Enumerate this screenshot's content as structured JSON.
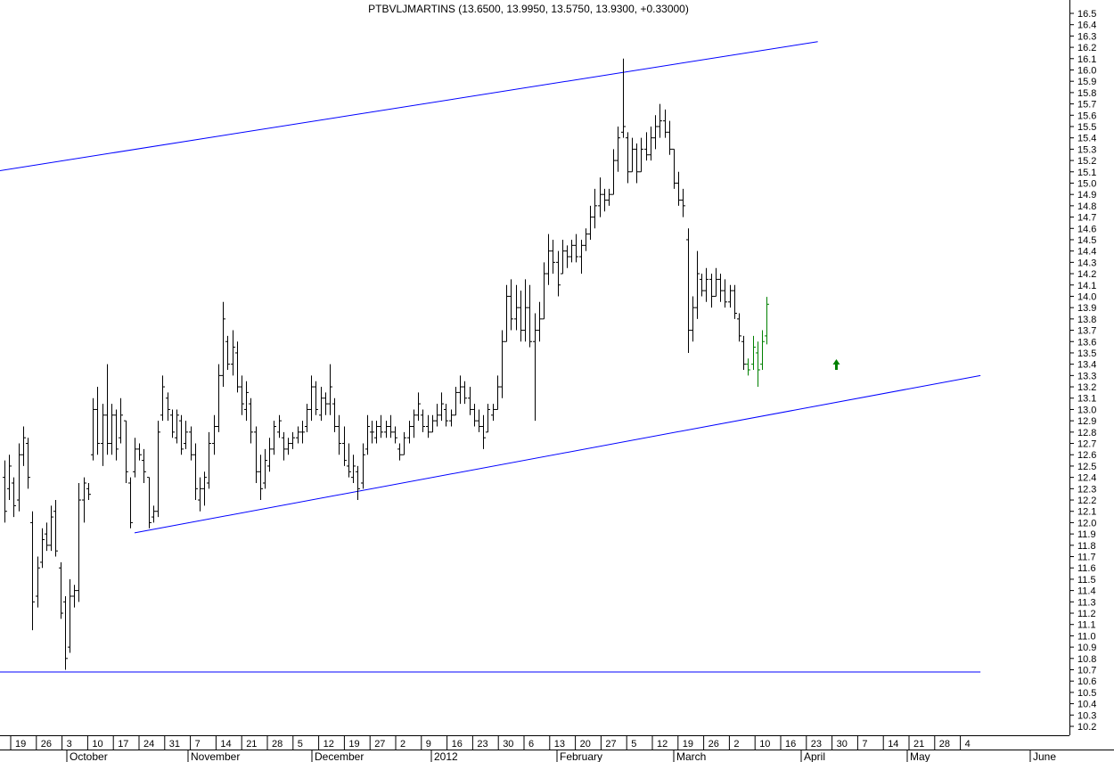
{
  "chart_data": {
    "type": "ohlc-bar",
    "title": "PTBVLJMARTINS (13.6500, 13.9950, 13.5750, 13.9300, +0.33000)",
    "ylim": [
      10.1,
      16.55
    ],
    "y_ticks": [
      10.2,
      10.3,
      10.4,
      10.5,
      10.6,
      10.7,
      10.8,
      10.9,
      11.0,
      11.1,
      11.2,
      11.3,
      11.4,
      11.5,
      11.6,
      11.7,
      11.8,
      11.9,
      12.0,
      12.1,
      12.2,
      12.3,
      12.4,
      12.5,
      12.6,
      12.7,
      12.8,
      12.9,
      13.0,
      13.1,
      13.2,
      13.3,
      13.4,
      13.5,
      13.6,
      13.7,
      13.8,
      13.9,
      14.0,
      14.1,
      14.2,
      14.3,
      14.4,
      14.5,
      14.6,
      14.7,
      14.8,
      14.9,
      15.0,
      15.1,
      15.2,
      15.3,
      15.4,
      15.5,
      15.6,
      15.7,
      15.8,
      15.9,
      16.0,
      16.1,
      16.2,
      16.3,
      16.4,
      16.5
    ],
    "x_day_labels": [
      "19",
      "26",
      "3",
      "10",
      "17",
      "24",
      "31",
      "7",
      "14",
      "21",
      "28",
      "5",
      "12",
      "19",
      "27",
      "2",
      "9",
      "16",
      "23",
      "30",
      "6",
      "13",
      "20",
      "27",
      "5",
      "12",
      "19",
      "26",
      "2",
      "10",
      "16",
      "23",
      "30",
      "7",
      "14",
      "21",
      "28",
      "4"
    ],
    "month_labels": [
      "October",
      "November",
      "December",
      "2012",
      "February",
      "March",
      "April",
      "May",
      "June"
    ],
    "bars": [
      {
        "h": 12.55,
        "l": 12.0,
        "o": 12.4,
        "c": 12.1
      },
      {
        "h": 12.6,
        "l": 12.2,
        "o": 12.3,
        "c": 12.5
      },
      {
        "h": 12.4,
        "l": 12.05,
        "o": 12.35,
        "c": 12.15
      },
      {
        "h": 12.7,
        "l": 12.1,
        "o": 12.2,
        "c": 12.6
      },
      {
        "h": 12.85,
        "l": 12.5,
        "o": 12.6,
        "c": 12.75
      },
      {
        "h": 12.75,
        "l": 12.3,
        "o": 12.7,
        "c": 12.4
      },
      {
        "h": 12.1,
        "l": 11.05,
        "o": 12.0,
        "c": 11.3
      },
      {
        "h": 11.7,
        "l": 11.25,
        "o": 11.35,
        "c": 11.6
      },
      {
        "h": 11.95,
        "l": 11.6,
        "o": 11.65,
        "c": 11.85
      },
      {
        "h": 12.0,
        "l": 11.75,
        "o": 11.9,
        "c": 11.8
      },
      {
        "h": 12.15,
        "l": 11.75,
        "o": 11.8,
        "c": 12.05
      },
      {
        "h": 12.2,
        "l": 11.7,
        "o": 12.1,
        "c": 11.75
      },
      {
        "h": 11.65,
        "l": 11.15,
        "o": 11.6,
        "c": 11.2
      },
      {
        "h": 11.35,
        "l": 10.7,
        "o": 11.3,
        "c": 10.8
      },
      {
        "h": 11.5,
        "l": 10.85,
        "o": 10.9,
        "c": 11.35
      },
      {
        "h": 11.45,
        "l": 11.25,
        "o": 11.35,
        "c": 11.4
      },
      {
        "h": 12.35,
        "l": 11.3,
        "o": 11.4,
        "c": 12.2
      },
      {
        "h": 12.4,
        "l": 12.0,
        "o": 12.2,
        "c": 12.35
      },
      {
        "h": 12.35,
        "l": 12.2,
        "o": 12.3,
        "c": 12.25
      },
      {
        "h": 13.1,
        "l": 12.55,
        "o": 12.6,
        "c": 13.0
      },
      {
        "h": 13.2,
        "l": 12.6,
        "o": 13.0,
        "c": 12.7
      },
      {
        "h": 13.05,
        "l": 12.5,
        "o": 12.7,
        "c": 12.95
      },
      {
        "h": 13.4,
        "l": 12.6,
        "o": 12.95,
        "c": 12.7
      },
      {
        "h": 13.05,
        "l": 12.6,
        "o": 12.7,
        "c": 12.95
      },
      {
        "h": 13.0,
        "l": 12.55,
        "o": 12.95,
        "c": 12.65
      },
      {
        "h": 13.1,
        "l": 12.7,
        "o": 12.75,
        "c": 12.95
      },
      {
        "h": 12.9,
        "l": 12.35,
        "o": 12.9,
        "c": 12.45
      },
      {
        "h": 12.4,
        "l": 11.95,
        "o": 12.35,
        "c": 12.0
      },
      {
        "h": 12.75,
        "l": 12.4,
        "o": 12.45,
        "c": 12.65
      },
      {
        "h": 12.7,
        "l": 12.55,
        "o": 12.65,
        "c": 12.6
      },
      {
        "h": 12.65,
        "l": 12.35,
        "o": 12.55,
        "c": 12.45
      },
      {
        "h": 12.4,
        "l": 11.95,
        "o": 12.4,
        "c": 12.0
      },
      {
        "h": 12.15,
        "l": 12.0,
        "o": 12.05,
        "c": 12.1
      },
      {
        "h": 12.9,
        "l": 12.05,
        "o": 12.1,
        "c": 12.8
      },
      {
        "h": 13.3,
        "l": 12.9,
        "o": 12.95,
        "c": 13.2
      },
      {
        "h": 13.15,
        "l": 12.9,
        "o": 13.1,
        "c": 13.0
      },
      {
        "h": 13.0,
        "l": 12.75,
        "o": 12.95,
        "c": 12.8
      },
      {
        "h": 13.0,
        "l": 12.7,
        "o": 12.75,
        "c": 12.95
      },
      {
        "h": 12.95,
        "l": 12.6,
        "o": 12.9,
        "c": 12.65
      },
      {
        "h": 12.9,
        "l": 12.65,
        "o": 12.7,
        "c": 12.8
      },
      {
        "h": 12.85,
        "l": 12.55,
        "o": 12.8,
        "c": 12.6
      },
      {
        "h": 12.7,
        "l": 12.2,
        "o": 12.6,
        "c": 12.3
      },
      {
        "h": 12.4,
        "l": 12.1,
        "o": 12.2,
        "c": 12.3
      },
      {
        "h": 12.45,
        "l": 12.15,
        "o": 12.3,
        "c": 12.4
      },
      {
        "h": 12.8,
        "l": 12.3,
        "o": 12.35,
        "c": 12.7
      },
      {
        "h": 12.95,
        "l": 12.6,
        "o": 12.7,
        "c": 12.85
      },
      {
        "h": 13.4,
        "l": 12.8,
        "o": 12.85,
        "c": 13.3
      },
      {
        "h": 13.95,
        "l": 13.2,
        "o": 13.3,
        "c": 13.8
      },
      {
        "h": 13.65,
        "l": 13.35,
        "o": 13.6,
        "c": 13.4
      },
      {
        "h": 13.7,
        "l": 13.3,
        "o": 13.4,
        "c": 13.55
      },
      {
        "h": 13.6,
        "l": 13.15,
        "o": 13.5,
        "c": 13.2
      },
      {
        "h": 13.3,
        "l": 12.95,
        "o": 13.2,
        "c": 13.05
      },
      {
        "h": 13.25,
        "l": 12.9,
        "o": 13.0,
        "c": 13.15
      },
      {
        "h": 13.1,
        "l": 12.7,
        "o": 13.05,
        "c": 12.8
      },
      {
        "h": 12.85,
        "l": 12.35,
        "o": 12.8,
        "c": 12.45
      },
      {
        "h": 12.6,
        "l": 12.2,
        "o": 12.45,
        "c": 12.3
      },
      {
        "h": 12.65,
        "l": 12.3,
        "o": 12.35,
        "c": 12.55
      },
      {
        "h": 12.75,
        "l": 12.45,
        "o": 12.5,
        "c": 12.65
      },
      {
        "h": 12.9,
        "l": 12.6,
        "o": 12.65,
        "c": 12.85
      },
      {
        "h": 12.95,
        "l": 12.75,
        "o": 12.8,
        "c": 12.9
      },
      {
        "h": 12.8,
        "l": 12.55,
        "o": 12.75,
        "c": 12.65
      },
      {
        "h": 12.75,
        "l": 12.6,
        "o": 12.65,
        "c": 12.7
      },
      {
        "h": 12.8,
        "l": 12.65,
        "o": 12.7,
        "c": 12.75
      },
      {
        "h": 12.85,
        "l": 12.7,
        "o": 12.75,
        "c": 12.8
      },
      {
        "h": 12.9,
        "l": 12.7,
        "o": 12.8,
        "c": 12.8
      },
      {
        "h": 13.05,
        "l": 12.8,
        "o": 12.85,
        "c": 13.0
      },
      {
        "h": 13.3,
        "l": 12.9,
        "o": 13.0,
        "c": 13.2
      },
      {
        "h": 13.25,
        "l": 12.95,
        "o": 13.2,
        "c": 13.0
      },
      {
        "h": 13.2,
        "l": 12.9,
        "o": 12.95,
        "c": 13.1
      },
      {
        "h": 13.15,
        "l": 12.95,
        "o": 13.1,
        "c": 13.05
      },
      {
        "h": 13.4,
        "l": 12.95,
        "o": 13.05,
        "c": 13.2
      },
      {
        "h": 13.1,
        "l": 12.8,
        "o": 13.05,
        "c": 12.85
      },
      {
        "h": 12.95,
        "l": 12.6,
        "o": 12.85,
        "c": 12.7
      },
      {
        "h": 12.85,
        "l": 12.5,
        "o": 12.7,
        "c": 12.55
      },
      {
        "h": 12.7,
        "l": 12.4,
        "o": 12.5,
        "c": 12.45
      },
      {
        "h": 12.6,
        "l": 12.35,
        "o": 12.4,
        "c": 12.5
      },
      {
        "h": 12.5,
        "l": 12.2,
        "o": 12.45,
        "c": 12.3
      },
      {
        "h": 12.7,
        "l": 12.3,
        "o": 12.35,
        "c": 12.6
      },
      {
        "h": 12.95,
        "l": 12.6,
        "o": 12.65,
        "c": 12.85
      },
      {
        "h": 12.9,
        "l": 12.7,
        "o": 12.8,
        "c": 12.8
      },
      {
        "h": 12.9,
        "l": 12.7,
        "o": 12.75,
        "c": 12.85
      },
      {
        "h": 12.95,
        "l": 12.75,
        "o": 12.85,
        "c": 12.8
      },
      {
        "h": 12.9,
        "l": 12.75,
        "o": 12.8,
        "c": 12.85
      },
      {
        "h": 12.95,
        "l": 12.75,
        "o": 12.85,
        "c": 12.8
      },
      {
        "h": 12.85,
        "l": 12.7,
        "o": 12.8,
        "c": 12.75
      },
      {
        "h": 12.7,
        "l": 12.55,
        "o": 12.65,
        "c": 12.6
      },
      {
        "h": 12.8,
        "l": 12.6,
        "o": 12.6,
        "c": 12.75
      },
      {
        "h": 12.9,
        "l": 12.7,
        "o": 12.75,
        "c": 12.85
      },
      {
        "h": 13.0,
        "l": 12.75,
        "o": 12.85,
        "c": 12.95
      },
      {
        "h": 13.15,
        "l": 12.9,
        "o": 12.95,
        "c": 13.05
      },
      {
        "h": 13.0,
        "l": 12.8,
        "o": 12.95,
        "c": 12.85
      },
      {
        "h": 12.95,
        "l": 12.75,
        "o": 12.85,
        "c": 12.8
      },
      {
        "h": 12.95,
        "l": 12.8,
        "o": 12.8,
        "c": 12.9
      },
      {
        "h": 13.05,
        "l": 12.85,
        "o": 12.9,
        "c": 12.95
      },
      {
        "h": 13.15,
        "l": 12.9,
        "o": 12.95,
        "c": 13.05
      },
      {
        "h": 13.05,
        "l": 12.85,
        "o": 13.0,
        "c": 12.9
      },
      {
        "h": 13.0,
        "l": 12.85,
        "o": 12.9,
        "c": 12.95
      },
      {
        "h": 13.2,
        "l": 12.95,
        "o": 12.95,
        "c": 13.15
      },
      {
        "h": 13.3,
        "l": 13.05,
        "o": 13.15,
        "c": 13.2
      },
      {
        "h": 13.25,
        "l": 13.05,
        "o": 13.2,
        "c": 13.1
      },
      {
        "h": 13.2,
        "l": 12.95,
        "o": 13.1,
        "c": 13.0
      },
      {
        "h": 13.05,
        "l": 12.85,
        "o": 13.0,
        "c": 12.9
      },
      {
        "h": 13.0,
        "l": 12.8,
        "o": 12.9,
        "c": 12.85
      },
      {
        "h": 12.95,
        "l": 12.65,
        "o": 12.85,
        "c": 12.75
      },
      {
        "h": 13.05,
        "l": 12.8,
        "o": 12.8,
        "c": 13.0
      },
      {
        "h": 13.05,
        "l": 12.9,
        "o": 12.95,
        "c": 13.0
      },
      {
        "h": 13.3,
        "l": 13.0,
        "o": 13.0,
        "c": 13.2
      },
      {
        "h": 13.7,
        "l": 13.1,
        "o": 13.2,
        "c": 13.6
      },
      {
        "h": 14.1,
        "l": 13.6,
        "o": 13.6,
        "c": 14.0
      },
      {
        "h": 14.15,
        "l": 13.7,
        "o": 14.0,
        "c": 13.8
      },
      {
        "h": 14.1,
        "l": 13.7,
        "o": 13.8,
        "c": 13.9
      },
      {
        "h": 14.05,
        "l": 13.6,
        "o": 13.9,
        "c": 13.7
      },
      {
        "h": 14.15,
        "l": 13.6,
        "o": 13.7,
        "c": 13.9
      },
      {
        "h": 14.1,
        "l": 13.55,
        "o": 13.9,
        "c": 13.6
      },
      {
        "h": 13.85,
        "l": 12.9,
        "o": 13.6,
        "c": 13.7
      },
      {
        "h": 13.95,
        "l": 13.6,
        "o": 13.7,
        "c": 13.8
      },
      {
        "h": 14.3,
        "l": 13.8,
        "o": 13.8,
        "c": 14.2
      },
      {
        "h": 14.55,
        "l": 14.1,
        "o": 14.2,
        "c": 14.4
      },
      {
        "h": 14.5,
        "l": 14.2,
        "o": 14.4,
        "c": 14.3
      },
      {
        "h": 14.4,
        "l": 14.0,
        "o": 14.3,
        "c": 14.1
      },
      {
        "h": 14.5,
        "l": 14.2,
        "o": 14.2,
        "c": 14.4
      },
      {
        "h": 14.45,
        "l": 14.25,
        "o": 14.4,
        "c": 14.35
      },
      {
        "h": 14.5,
        "l": 14.3,
        "o": 14.35,
        "c": 14.45
      },
      {
        "h": 14.55,
        "l": 14.3,
        "o": 14.45,
        "c": 14.35
      },
      {
        "h": 14.5,
        "l": 14.2,
        "o": 14.35,
        "c": 14.45
      },
      {
        "h": 14.6,
        "l": 14.4,
        "o": 14.45,
        "c": 14.55
      },
      {
        "h": 14.8,
        "l": 14.5,
        "o": 14.55,
        "c": 14.7
      },
      {
        "h": 14.95,
        "l": 14.6,
        "o": 14.7,
        "c": 14.8
      },
      {
        "h": 15.05,
        "l": 14.7,
        "o": 14.8,
        "c": 14.9
      },
      {
        "h": 14.95,
        "l": 14.75,
        "o": 14.9,
        "c": 14.85
      },
      {
        "h": 14.95,
        "l": 14.8,
        "o": 14.85,
        "c": 14.9
      },
      {
        "h": 15.3,
        "l": 14.9,
        "o": 14.9,
        "c": 15.2
      },
      {
        "h": 15.5,
        "l": 15.1,
        "o": 15.2,
        "c": 15.4
      },
      {
        "h": 16.1,
        "l": 15.4,
        "o": 15.45,
        "c": 15.5
      },
      {
        "h": 15.45,
        "l": 15.0,
        "o": 15.4,
        "c": 15.1
      },
      {
        "h": 15.4,
        "l": 15.1,
        "o": 15.1,
        "c": 15.3
      },
      {
        "h": 15.35,
        "l": 15.0,
        "o": 15.3,
        "c": 15.1
      },
      {
        "h": 15.4,
        "l": 15.1,
        "o": 15.1,
        "c": 15.3
      },
      {
        "h": 15.45,
        "l": 15.2,
        "o": 15.3,
        "c": 15.25
      },
      {
        "h": 15.5,
        "l": 15.2,
        "o": 15.25,
        "c": 15.4
      },
      {
        "h": 15.6,
        "l": 15.3,
        "o": 15.4,
        "c": 15.5
      },
      {
        "h": 15.7,
        "l": 15.4,
        "o": 15.5,
        "c": 15.55
      },
      {
        "h": 15.65,
        "l": 15.4,
        "o": 15.55,
        "c": 15.45
      },
      {
        "h": 15.55,
        "l": 15.25,
        "o": 15.45,
        "c": 15.3
      },
      {
        "h": 15.3,
        "l": 14.95,
        "o": 15.3,
        "c": 15.0
      },
      {
        "h": 15.1,
        "l": 14.8,
        "o": 15.0,
        "c": 14.85
      },
      {
        "h": 14.95,
        "l": 14.7,
        "o": 14.85,
        "c": 14.8
      },
      {
        "h": 14.6,
        "l": 13.5,
        "o": 14.5,
        "c": 13.7
      },
      {
        "h": 14.0,
        "l": 13.6,
        "o": 13.7,
        "c": 13.9
      },
      {
        "h": 14.4,
        "l": 13.8,
        "o": 13.9,
        "c": 14.2
      },
      {
        "h": 14.2,
        "l": 14.0,
        "o": 14.15,
        "c": 14.05
      },
      {
        "h": 14.25,
        "l": 13.95,
        "o": 14.05,
        "c": 14.15
      },
      {
        "h": 14.2,
        "l": 13.9,
        "o": 14.15,
        "c": 14.0
      },
      {
        "h": 14.25,
        "l": 14.0,
        "o": 14.0,
        "c": 14.15
      },
      {
        "h": 14.2,
        "l": 13.95,
        "o": 14.15,
        "c": 14.05
      },
      {
        "h": 14.15,
        "l": 13.9,
        "o": 14.05,
        "c": 13.95
      },
      {
        "h": 14.1,
        "l": 13.9,
        "o": 13.95,
        "c": 14.05
      },
      {
        "h": 14.1,
        "l": 13.8,
        "o": 14.05,
        "c": 13.85
      },
      {
        "h": 13.85,
        "l": 13.6,
        "o": 13.8,
        "c": 13.65
      },
      {
        "h": 13.65,
        "l": 13.35,
        "o": 13.6,
        "c": 13.4
      },
      {
        "h": 13.45,
        "l": 13.3,
        "o": 13.4,
        "c": 13.35,
        "up": true
      },
      {
        "h": 13.65,
        "l": 13.35,
        "o": 13.4,
        "c": 13.55,
        "up": true
      },
      {
        "h": 13.6,
        "l": 13.2,
        "o": 13.5,
        "c": 13.35,
        "up": true
      },
      {
        "h": 13.7,
        "l": 13.35,
        "o": 13.4,
        "c": 13.6,
        "up": true
      },
      {
        "h": 13.995,
        "l": 13.575,
        "o": 13.65,
        "c": 13.93,
        "up": true
      }
    ],
    "trendlines": [
      {
        "from": {
          "bar": -1,
          "price": 15.11
        },
        "to": {
          "bar": 175,
          "price": 16.25
        }
      },
      {
        "from": {
          "bar": 28,
          "price": 11.91
        },
        "to": {
          "bar": 210,
          "price": 13.3
        }
      },
      {
        "from": {
          "bar": -1,
          "price": 10.68
        },
        "to": {
          "bar": 210,
          "price": 10.68
        }
      }
    ],
    "annotations": [
      {
        "type": "arrow-up",
        "bar": 179,
        "price": 13.35
      }
    ],
    "colors": {
      "bars": "#000000",
      "recent_bars": "#008000",
      "trendline": "#0000ff",
      "arrow": "#008000"
    },
    "grid": false
  }
}
